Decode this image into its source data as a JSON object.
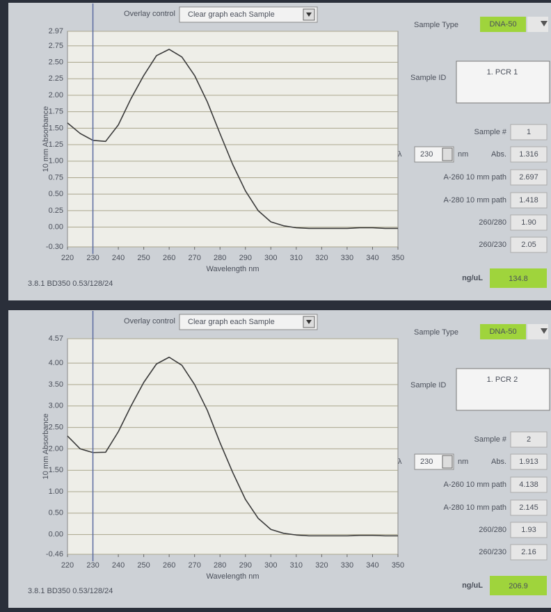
{
  "chart_data": [
    {
      "type": "line",
      "xlabel": "Wavelength nm",
      "ylabel": "10 mm Absorbance",
      "x": [
        220,
        225,
        230,
        235,
        240,
        245,
        250,
        255,
        260,
        265,
        270,
        275,
        280,
        285,
        290,
        295,
        300,
        305,
        310,
        315,
        320,
        325,
        330,
        335,
        340,
        345,
        350
      ],
      "series": [
        {
          "color": "#3a3a3a",
          "values": [
            1.58,
            1.42,
            1.316,
            1.3,
            1.55,
            1.95,
            2.3,
            2.6,
            2.697,
            2.58,
            2.3,
            1.9,
            1.418,
            0.95,
            0.55,
            0.25,
            0.08,
            0.02,
            -0.01,
            -0.02,
            -0.02,
            -0.02,
            -0.02,
            -0.01,
            -0.01,
            -0.02,
            -0.02
          ]
        }
      ],
      "xlim": [
        220,
        350
      ],
      "xticks": [
        220,
        230,
        240,
        250,
        260,
        270,
        280,
        290,
        300,
        310,
        320,
        330,
        340,
        350
      ],
      "ylim": [
        -0.3,
        2.97
      ],
      "yticks": [
        2.97,
        2.75,
        {
          "value": 2.5,
          "label": "2.50"
        },
        2.25,
        {
          "value": 2,
          "label": "2.00"
        },
        1.75,
        {
          "value": 1.5,
          "label": "1.50"
        },
        1.25,
        {
          "value": 1,
          "label": "1.00"
        },
        0.75,
        {
          "value": 0.5,
          "label": "0.50"
        },
        0.25,
        {
          "value": 0,
          "label": "0.00"
        },
        {
          "value": -0.3,
          "label": "-0.30"
        }
      ],
      "grid": true
    },
    {
      "type": "line",
      "xlabel": "Wavelength nm",
      "ylabel": "10 mm Absorbance",
      "x": [
        220,
        225,
        230,
        235,
        240,
        245,
        250,
        255,
        260,
        265,
        270,
        275,
        280,
        285,
        290,
        295,
        300,
        305,
        310,
        315,
        320,
        325,
        330,
        335,
        340,
        345,
        350
      ],
      "series": [
        {
          "color": "#3a3a3a",
          "values": [
            2.3,
            2.0,
            1.913,
            1.92,
            2.4,
            3.0,
            3.55,
            3.98,
            4.138,
            3.95,
            3.5,
            2.9,
            2.145,
            1.45,
            0.82,
            0.38,
            0.12,
            0.03,
            -0.01,
            -0.03,
            -0.03,
            -0.03,
            -0.03,
            -0.02,
            -0.02,
            -0.03,
            -0.03
          ]
        }
      ],
      "xlim": [
        220,
        350
      ],
      "xticks": [
        220,
        230,
        240,
        250,
        260,
        270,
        280,
        290,
        300,
        310,
        320,
        330,
        340,
        350
      ],
      "ylim": [
        -0.46,
        4.57
      ],
      "yticks": [
        4.57,
        {
          "value": 4,
          "label": "4.00"
        },
        {
          "value": 3.5,
          "label": "3.50"
        },
        {
          "value": 3,
          "label": "3.00"
        },
        {
          "value": 2.5,
          "label": "2.50"
        },
        {
          "value": 2,
          "label": "2.00"
        },
        {
          "value": 1.5,
          "label": "1.50"
        },
        {
          "value": 1,
          "label": "1.00"
        },
        {
          "value": 0.5,
          "label": "0.50"
        },
        {
          "value": 0,
          "label": "0.00"
        },
        {
          "value": -0.46,
          "label": "-0.46"
        }
      ],
      "grid": true
    }
  ],
  "panels": [
    {
      "overlay_label": "Overlay control",
      "overlay_value": "Clear graph each Sample",
      "footer": "3.8.1 BD350 0.53/128/24",
      "sample_type_label": "Sample Type",
      "sample_type": "DNA-50",
      "sample_id_label": "Sample ID",
      "sample_id": "1. PCR 1",
      "sample_num_label": "Sample #",
      "sample_num": "1",
      "lambda_symbol": "λ",
      "lambda_value": "230",
      "nm": "nm",
      "abs_label": "Abs.",
      "abs": "1.316",
      "a260_label": "A-260 10 mm path",
      "a260": "2.697",
      "a280_label": "A-280 10 mm path",
      "a280": "1.418",
      "r260_280_label": "260/280",
      "r260_280": "1.90",
      "r260_230_label": "260/230",
      "r260_230": "2.05",
      "conc_label": "ng/uL",
      "conc": "134.8"
    },
    {
      "overlay_label": "Overlay control",
      "overlay_value": "Clear graph each Sample",
      "footer": "3.8.1 BD350 0.53/128/24",
      "sample_type_label": "Sample Type",
      "sample_type": "DNA-50",
      "sample_id_label": "Sample ID",
      "sample_id": "1. PCR 2",
      "sample_num_label": "Sample #",
      "sample_num": "2",
      "lambda_symbol": "λ",
      "lambda_value": "230",
      "nm": "nm",
      "abs_label": "Abs.",
      "abs": "1.913",
      "a260_label": "A-260 10 mm path",
      "a260": "4.138",
      "a280_label": "A-280 10 mm path",
      "a280": "2.145",
      "r260_280_label": "260/280",
      "r260_280": "1.93",
      "r260_230_label": "260/230",
      "r260_230": "2.16",
      "conc_label": "ng/uL",
      "conc": "206.9"
    }
  ]
}
